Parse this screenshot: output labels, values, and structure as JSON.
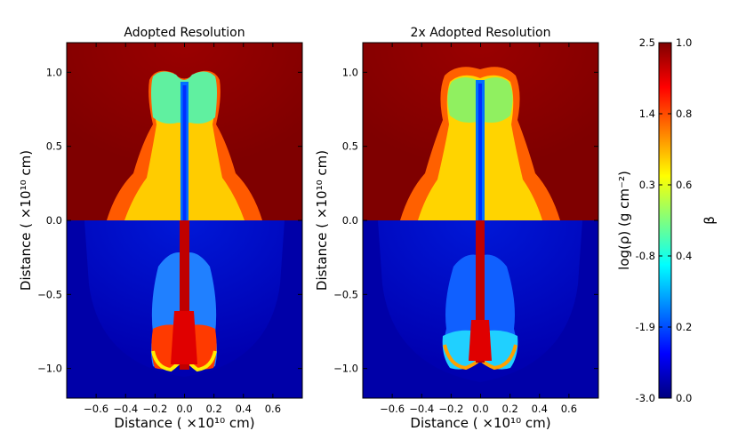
{
  "chart_data": [
    {
      "type": "heatmap",
      "title": "Adopted Resolution",
      "xlabel": "Distance ( ×10¹⁰ cm)",
      "ylabel": "Distance ( ×10¹⁰ cm)",
      "xlim": [
        -0.8,
        0.8
      ],
      "ylim": [
        -1.2,
        1.2
      ],
      "xticks": [
        -0.6,
        -0.4,
        -0.2,
        0.0,
        0.2,
        0.4,
        0.6
      ],
      "yticks": [
        -1.0,
        -0.5,
        0.0,
        0.5,
        1.0
      ],
      "xtick_labels": [
        "−0.6",
        "−0.4",
        "−0.2",
        "0.0",
        "0.2",
        "0.4",
        "0.6"
      ],
      "ytick_labels": [
        "−1.0",
        "−0.5",
        "0.0",
        "0.5",
        "1.0"
      ]
    },
    {
      "type": "heatmap",
      "title": "2x Adopted Resolution",
      "xlabel": "Distance ( ×10¹⁰ cm)",
      "ylabel": "Distance ( ×10¹⁰ cm)",
      "xlim": [
        -0.8,
        0.8
      ],
      "ylim": [
        -1.2,
        1.2
      ],
      "xticks": [
        -0.6,
        -0.4,
        -0.2,
        0.0,
        0.2,
        0.4,
        0.6
      ],
      "yticks": [
        -1.0,
        -0.5,
        0.0,
        0.5,
        1.0
      ],
      "xtick_labels": [
        "−0.6",
        "−0.4",
        "−0.2",
        "0.0",
        "0.2",
        "0.4",
        "0.6"
      ],
      "ytick_labels": [
        "−1.0",
        "−0.5",
        "0.0",
        "0.5",
        "1.0"
      ]
    }
  ],
  "colorbar": {
    "colormap": "jet",
    "left_label": "log(ρ) (g cm⁻²)",
    "right_label": "β",
    "left_ticks": [
      "2.5",
      "1.4",
      "0.3",
      "-0.8",
      "-1.9",
      "-3.0"
    ],
    "left_values": [
      2.5,
      1.4,
      0.3,
      -0.8,
      -1.9,
      -3.0
    ],
    "right_ticks": [
      "1.0",
      "0.8",
      "0.6",
      "0.4",
      "0.2",
      "0.0"
    ],
    "right_values": [
      1.0,
      0.8,
      0.6,
      0.4,
      0.2,
      0.0
    ],
    "colors": [
      "#00007f",
      "#0000ff",
      "#007fff",
      "#00ffff",
      "#7fff7f",
      "#ffff00",
      "#ff7f00",
      "#ff0000",
      "#7f0000"
    ]
  }
}
